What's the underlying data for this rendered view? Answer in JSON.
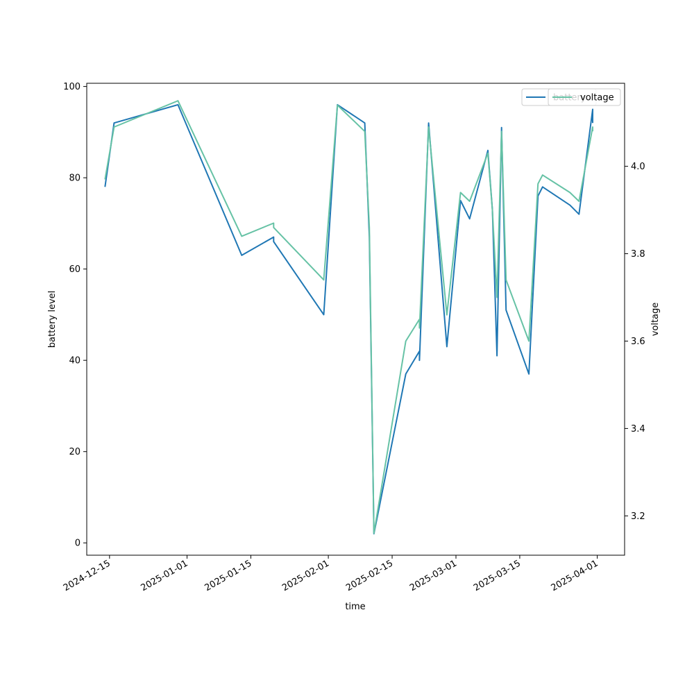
{
  "chart_data": {
    "type": "line",
    "xlabel": "time",
    "ylabel": "battery level",
    "y2label": "voltage",
    "xlim": [
      "2024-12-10",
      "2025-04-07"
    ],
    "ylim": [
      -2.7,
      100.7
    ],
    "y2lim": [
      3.11,
      4.19
    ],
    "x_ticks": [
      "2024-12-15",
      "2025-01-01",
      "2025-01-15",
      "2025-02-01",
      "2025-02-15",
      "2025-03-01",
      "2025-03-15",
      "2025-04-01"
    ],
    "y_ticks": [
      "0",
      "20",
      "40",
      "60",
      "80",
      "100"
    ],
    "y2_ticks": [
      "3.2",
      "3.4",
      "3.6",
      "3.8",
      "4.0"
    ],
    "legend_position": "top-right",
    "series": [
      {
        "name": "battery",
        "axis": "left",
        "color": "#1f77b4",
        "points": [
          [
            "2024-12-14",
            78
          ],
          [
            "2024-12-16",
            92
          ],
          [
            "2024-12-30",
            96
          ],
          [
            "2025-01-13",
            63
          ],
          [
            "2025-01-20",
            67
          ],
          [
            "2025-01-20",
            66
          ],
          [
            "2025-01-31",
            50
          ],
          [
            "2025-02-03",
            96
          ],
          [
            "2025-02-09",
            92
          ],
          [
            "2025-02-10",
            67
          ],
          [
            "2025-02-11",
            2
          ],
          [
            "2025-02-18",
            37
          ],
          [
            "2025-02-21",
            42
          ],
          [
            "2025-02-21",
            40
          ],
          [
            "2025-02-23",
            92
          ],
          [
            "2025-02-27",
            43
          ],
          [
            "2025-03-02",
            75
          ],
          [
            "2025-03-04",
            71
          ],
          [
            "2025-03-08",
            86
          ],
          [
            "2025-03-09",
            73
          ],
          [
            "2025-03-10",
            41
          ],
          [
            "2025-03-11",
            91
          ],
          [
            "2025-03-12",
            51
          ],
          [
            "2025-03-17",
            37
          ],
          [
            "2025-03-19",
            76
          ],
          [
            "2025-03-20",
            78
          ],
          [
            "2025-03-26",
            74
          ],
          [
            "2025-03-28",
            72
          ],
          [
            "2025-03-31",
            95
          ],
          [
            "2025-03-31",
            92
          ]
        ]
      },
      {
        "name": "voltage",
        "axis": "right",
        "color": "#66c2a5",
        "points": [
          [
            "2024-12-14",
            3.97
          ],
          [
            "2024-12-16",
            4.09
          ],
          [
            "2024-12-30",
            4.15
          ],
          [
            "2025-01-13",
            3.84
          ],
          [
            "2025-01-20",
            3.87
          ],
          [
            "2025-01-20",
            3.86
          ],
          [
            "2025-01-31",
            3.74
          ],
          [
            "2025-02-03",
            4.14
          ],
          [
            "2025-02-09",
            4.08
          ],
          [
            "2025-02-10",
            3.86
          ],
          [
            "2025-02-11",
            3.16
          ],
          [
            "2025-02-18",
            3.6
          ],
          [
            "2025-02-21",
            3.65
          ],
          [
            "2025-02-21",
            3.63
          ],
          [
            "2025-02-23",
            4.09
          ],
          [
            "2025-02-27",
            3.66
          ],
          [
            "2025-03-02",
            3.94
          ],
          [
            "2025-03-04",
            3.92
          ],
          [
            "2025-03-08",
            4.03
          ],
          [
            "2025-03-09",
            3.9
          ],
          [
            "2025-03-10",
            3.7
          ],
          [
            "2025-03-11",
            4.08
          ],
          [
            "2025-03-12",
            3.74
          ],
          [
            "2025-03-17",
            3.6
          ],
          [
            "2025-03-19",
            3.96
          ],
          [
            "2025-03-20",
            3.98
          ],
          [
            "2025-03-26",
            3.94
          ],
          [
            "2025-03-28",
            3.92
          ],
          [
            "2025-03-31",
            4.09
          ],
          [
            "2025-03-31",
            4.08
          ]
        ]
      }
    ]
  }
}
